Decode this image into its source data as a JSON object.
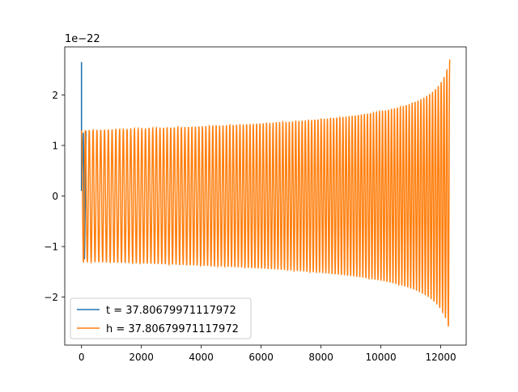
{
  "chart_data": {
    "type": "line",
    "title": "",
    "xlabel": "",
    "ylabel": "",
    "y_offset_label": "1e−22",
    "xlim": [
      -560,
      12850
    ],
    "ylim": [
      -2.95,
      2.95
    ],
    "xticks": [
      0,
      2000,
      4000,
      6000,
      8000,
      10000,
      12000
    ],
    "xtick_labels": [
      "0",
      "2000",
      "4000",
      "6000",
      "8000",
      "10000",
      "12000"
    ],
    "yticks": [
      -2,
      -1,
      0,
      1,
      2
    ],
    "ytick_labels": [
      "−2",
      "−1",
      "0",
      "1",
      "2"
    ],
    "grid": false,
    "legend_position": "lower-left",
    "series": [
      {
        "name": "t = 37.80679971117972",
        "color": "#1f77b4",
        "description_points": {
          "x": [
            0,
            0,
            0,
            60,
            100,
            150
          ],
          "y": [
            0.1,
            2.65,
            0.15,
            1.25,
            -1.25,
            1.28
          ]
        }
      },
      {
        "name": "h = 37.80679971117972",
        "color": "#ff7f0e",
        "waveform": {
          "x_start": 0,
          "x_end": 12300,
          "amplitude_start": 1.3,
          "amplitude_end": 2.7,
          "cycles": 112
        }
      }
    ]
  }
}
